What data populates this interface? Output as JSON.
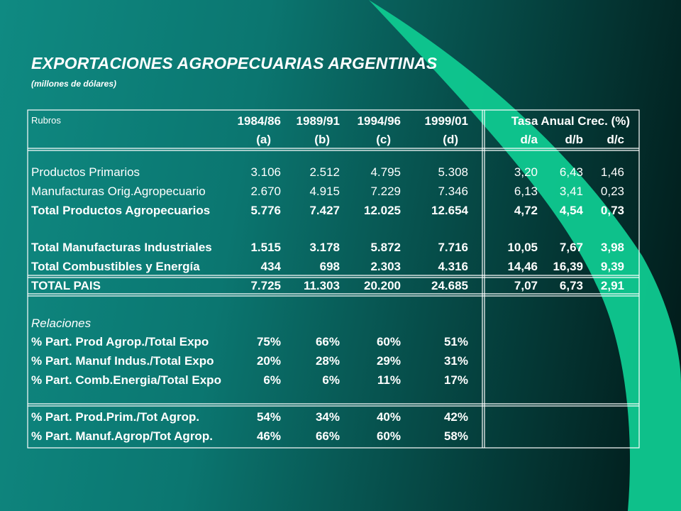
{
  "title": "EXPORTACIONES AGROPECUARIAS ARGENTINAS",
  "subtitle": "(millones de dólares)",
  "header": {
    "rubros": "Rubros",
    "periods": [
      "1984/86",
      "1989/91",
      "1994/96",
      "1999/01"
    ],
    "period_letters": [
      "(a)",
      "(b)",
      "(c)",
      "(d)"
    ],
    "tasa": "Tasa Anual Crec. (%)",
    "tasa_cols": [
      "d/a",
      "d/b",
      "d/c"
    ]
  },
  "rows": [
    {
      "label": "Productos Primarios",
      "values": [
        "3.106",
        "2.512",
        "4.795",
        "5.308"
      ],
      "rates": [
        "3,20",
        "6,43",
        "1,46"
      ],
      "bold": false
    },
    {
      "label": "Manufacturas Orig.Agropecuario",
      "values": [
        "2.670",
        "4.915",
        "7.229",
        "7.346"
      ],
      "rates": [
        "6,13",
        "3,41",
        "0,23"
      ],
      "bold": false
    },
    {
      "label": "Total Productos Agropecuarios",
      "values": [
        "5.776",
        "7.427",
        "12.025",
        "12.654"
      ],
      "rates": [
        "4,72",
        "4,54",
        "0,73"
      ],
      "bold": true
    },
    {
      "label": "Total Manufacturas Industriales",
      "values": [
        "1.515",
        "3.178",
        "5.872",
        "7.716"
      ],
      "rates": [
        "10,05",
        "7,67",
        "3,98"
      ],
      "bold": true
    },
    {
      "label": "Total Combustibles y Energía",
      "values": [
        "434",
        "698",
        "2.303",
        "4.316"
      ],
      "rates": [
        "14,46",
        "16,39",
        "9,39"
      ],
      "bold": true
    },
    {
      "label": "TOTAL PAIS",
      "values": [
        "7.725",
        "11.303",
        "20.200",
        "24.685"
      ],
      "rates": [
        "7,07",
        "6,73",
        "2,91"
      ],
      "bold": true
    }
  ],
  "relaciones_label": "Relaciones",
  "relaciones": [
    {
      "label": "% Part. Prod Agrop./Total Expo",
      "values": [
        "75%",
        "66%",
        "60%",
        "51%"
      ]
    },
    {
      "label": "% Part. Manuf Indus./Total Expo",
      "values": [
        "20%",
        "28%",
        "29%",
        "31%"
      ]
    },
    {
      "label": "% Part. Comb.Energia/Total Expo",
      "values": [
        "6%",
        "6%",
        "11%",
        "17%"
      ]
    }
  ],
  "agrop": [
    {
      "label": "% Part. Prod.Prim./Tot Agrop.",
      "values": [
        "54%",
        "34%",
        "40%",
        "42%"
      ]
    },
    {
      "label": "% Part. Manuf.Agrop/Tot Agrop.",
      "values": [
        "46%",
        "66%",
        "60%",
        "58%"
      ]
    }
  ],
  "colors": {
    "swoosh": "#0fc990",
    "background_start": "#0f8a82",
    "background_end": "#011716",
    "text": "#ffffff"
  }
}
